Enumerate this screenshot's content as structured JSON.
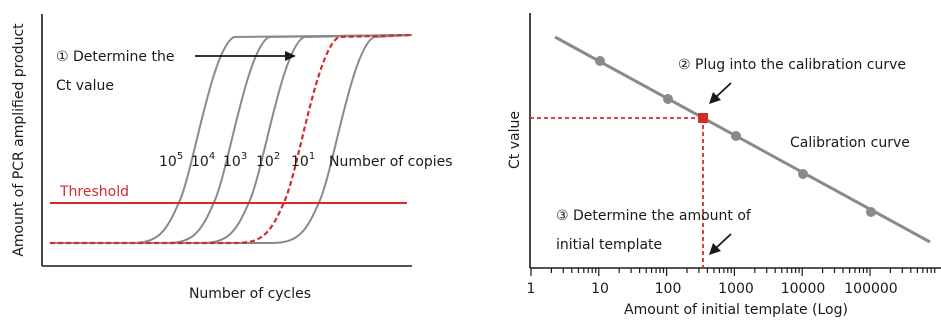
{
  "left_panel": {
    "y_axis_label": "Amount of PCR amplified product",
    "x_axis_label": "Number of cycles",
    "threshold_label": "Threshold",
    "step1_line1": "① Determine the",
    "step1_line2": "Ct value",
    "copies_label": "Number of copies",
    "curve_labels": [
      {
        "base": "10",
        "exp": "5"
      },
      {
        "base": "10",
        "exp": "4"
      },
      {
        "base": "10",
        "exp": "3"
      },
      {
        "base": "10",
        "exp": "2"
      },
      {
        "base": "10",
        "exp": "1"
      }
    ]
  },
  "right_panel": {
    "y_axis_label": "Ct value",
    "x_axis_label": "Amount of initial template (Log)",
    "step2": "② Plug into the calibration curve",
    "calibration_label": "Calibration curve",
    "step3_line1": "③ Determine the amount of",
    "step3_line2": "initial template",
    "tick_labels": [
      "1",
      "10",
      "100",
      "1000",
      "10000",
      "100000"
    ]
  },
  "colors": {
    "curve": "#8a8a8a",
    "red": "#d42a2a",
    "axis": "#1a1a1a"
  },
  "chart_data": [
    {
      "type": "line",
      "title": "",
      "xlabel": "Number of cycles",
      "ylabel": "Amount of PCR amplified product",
      "series": [
        {
          "name": "10^5"
        },
        {
          "name": "10^4"
        },
        {
          "name": "10^3"
        },
        {
          "name": "10^2"
        },
        {
          "name": "10^1"
        }
      ],
      "threshold": "Threshold",
      "legend": "Number of copies"
    },
    {
      "type": "scatter",
      "title": "",
      "xlabel": "Amount of initial template (Log)",
      "ylabel": "Ct value",
      "x_scale": "log",
      "x": [
        10,
        100,
        1000,
        10000,
        100000
      ],
      "series": [
        {
          "name": "Calibration curve"
        }
      ],
      "unknown_sample_x": 300
    }
  ]
}
